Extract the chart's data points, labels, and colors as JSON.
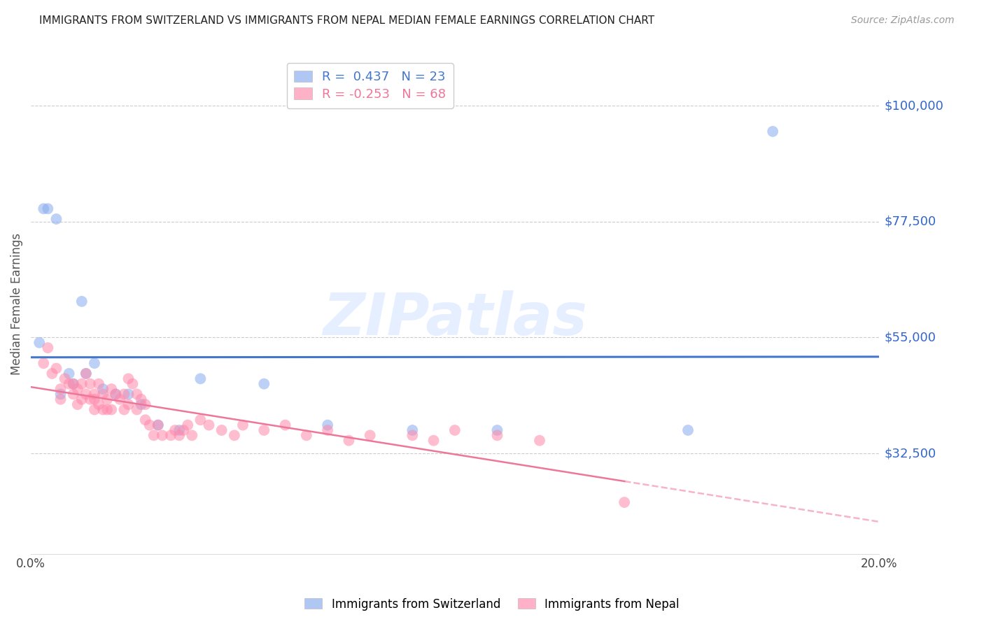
{
  "title": "IMMIGRANTS FROM SWITZERLAND VS IMMIGRANTS FROM NEPAL MEDIAN FEMALE EARNINGS CORRELATION CHART",
  "source": "Source: ZipAtlas.com",
  "ylabel": "Median Female Earnings",
  "xlim": [
    0.0,
    0.2
  ],
  "ylim": [
    13000,
    110000
  ],
  "yticks": [
    32500,
    55000,
    77500,
    100000
  ],
  "ytick_labels": [
    "$32,500",
    "$55,000",
    "$77,500",
    "$100,000"
  ],
  "xticks": [
    0.0,
    0.05,
    0.1,
    0.15,
    0.2
  ],
  "xtick_labels": [
    "0.0%",
    "",
    "",
    "",
    "20.0%"
  ],
  "background_color": "#ffffff",
  "grid_color": "#cccccc",
  "swiss_color": "#88aaee",
  "nepal_color": "#ff88aa",
  "swiss_line_color": "#4477cc",
  "nepal_line_color": "#ee7799",
  "swiss_R": 0.437,
  "swiss_N": 23,
  "nepal_R": -0.253,
  "nepal_N": 68,
  "swiss_x": [
    0.002,
    0.003,
    0.004,
    0.006,
    0.007,
    0.009,
    0.01,
    0.012,
    0.013,
    0.015,
    0.017,
    0.02,
    0.023,
    0.026,
    0.03,
    0.035,
    0.04,
    0.055,
    0.07,
    0.09,
    0.11,
    0.155,
    0.175
  ],
  "swiss_y": [
    54000,
    80000,
    80000,
    78000,
    44000,
    48000,
    46000,
    62000,
    48000,
    50000,
    45000,
    44000,
    44000,
    42000,
    38000,
    37000,
    47000,
    46000,
    38000,
    37000,
    37000,
    37000,
    95000
  ],
  "nepal_x": [
    0.003,
    0.004,
    0.005,
    0.006,
    0.007,
    0.007,
    0.008,
    0.009,
    0.01,
    0.01,
    0.011,
    0.011,
    0.012,
    0.012,
    0.013,
    0.013,
    0.014,
    0.014,
    0.015,
    0.015,
    0.015,
    0.016,
    0.016,
    0.017,
    0.017,
    0.018,
    0.018,
    0.019,
    0.019,
    0.02,
    0.021,
    0.022,
    0.022,
    0.023,
    0.023,
    0.024,
    0.025,
    0.025,
    0.026,
    0.027,
    0.027,
    0.028,
    0.029,
    0.03,
    0.031,
    0.033,
    0.034,
    0.035,
    0.036,
    0.037,
    0.038,
    0.04,
    0.042,
    0.045,
    0.048,
    0.05,
    0.055,
    0.06,
    0.065,
    0.07,
    0.075,
    0.08,
    0.09,
    0.095,
    0.1,
    0.11,
    0.12,
    0.14
  ],
  "nepal_y": [
    50000,
    53000,
    48000,
    49000,
    45000,
    43000,
    47000,
    46000,
    46000,
    44000,
    45000,
    42000,
    46000,
    43000,
    48000,
    44000,
    46000,
    43000,
    44000,
    43000,
    41000,
    46000,
    42000,
    44000,
    41000,
    43000,
    41000,
    45000,
    41000,
    44000,
    43000,
    44000,
    41000,
    47000,
    42000,
    46000,
    44000,
    41000,
    43000,
    42000,
    39000,
    38000,
    36000,
    38000,
    36000,
    36000,
    37000,
    36000,
    37000,
    38000,
    36000,
    39000,
    38000,
    37000,
    36000,
    38000,
    37000,
    38000,
    36000,
    37000,
    35000,
    36000,
    36000,
    35000,
    37000,
    36000,
    35000,
    23000
  ],
  "watermark_text": "ZIPatlas",
  "watermark_color": "#aaccff",
  "watermark_alpha": 0.3,
  "watermark_fontsize": 60
}
